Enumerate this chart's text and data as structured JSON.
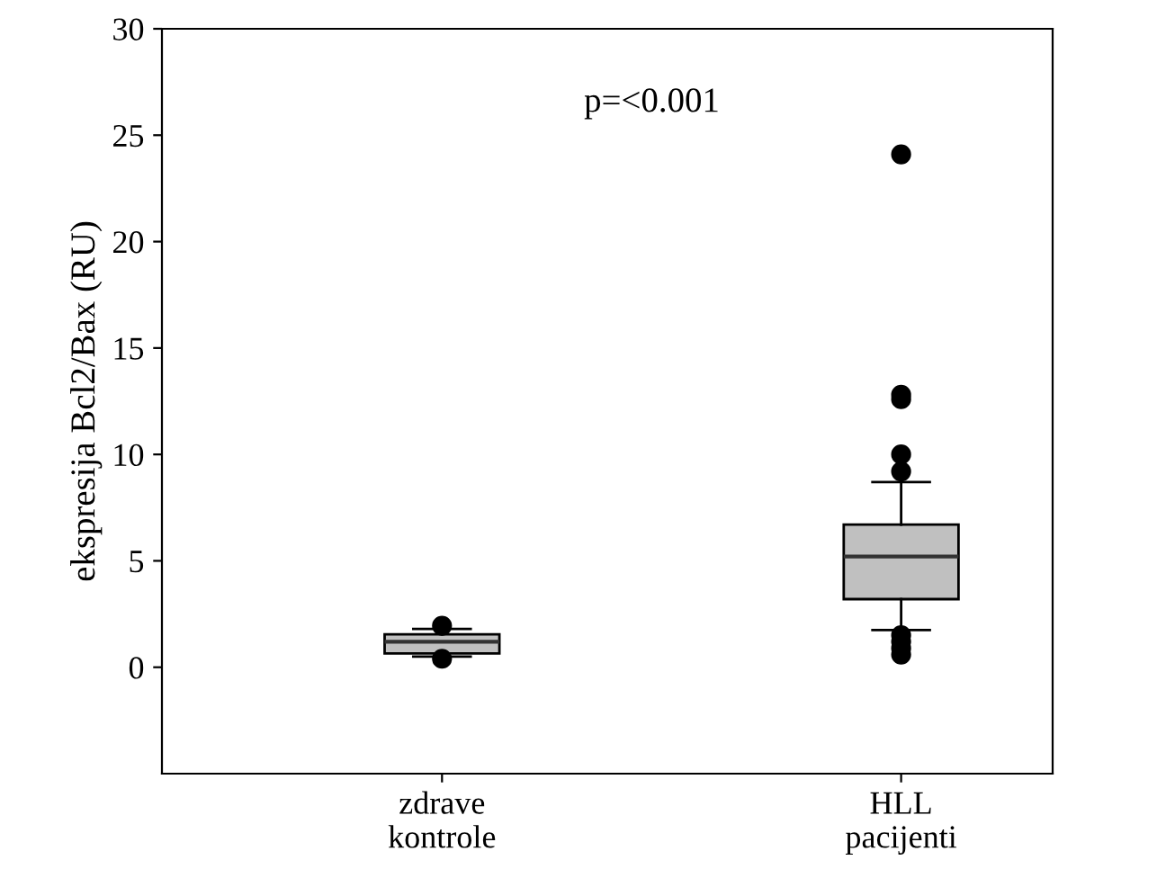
{
  "chart_data": {
    "type": "box",
    "ylabel": "ekspresija Bcl2/Bax (RU)",
    "categories": [
      "zdrave\nkontrole",
      "HLL\npacijenti"
    ],
    "boxes": [
      {
        "low": 0.5,
        "q1": 0.65,
        "median": 1.2,
        "q3": 1.55,
        "high": 1.8,
        "outliers": [
          1.95,
          0.4
        ]
      },
      {
        "low": 1.75,
        "q1": 3.2,
        "median": 5.2,
        "q3": 6.7,
        "high": 8.7,
        "outliers": [
          24.1,
          12.8,
          12.6,
          10.0,
          9.2,
          1.5,
          1.2,
          0.9,
          0.6
        ]
      }
    ],
    "color": "#c0c0c0",
    "ylim": [
      -5,
      30
    ],
    "yticks": [
      0,
      5,
      10,
      15,
      20,
      25,
      30
    ],
    "annotations": [
      "p=<0.001"
    ],
    "grid": false,
    "legend": false
  }
}
